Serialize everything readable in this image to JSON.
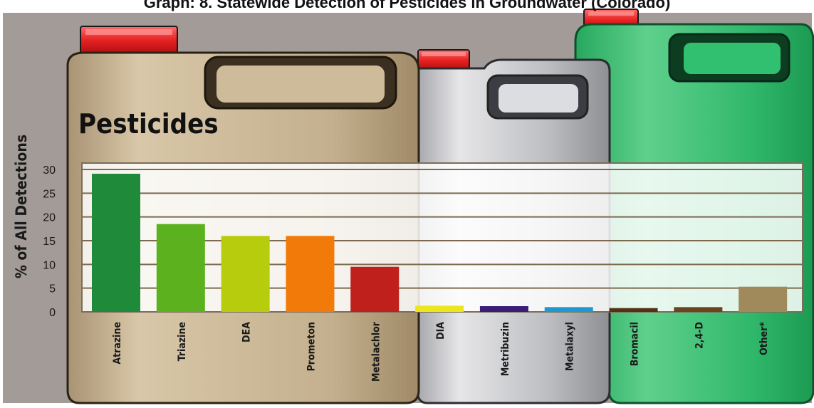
{
  "chart_data": {
    "type": "bar",
    "title": "Graph: 8. Statewide Detection of Pesticides in Groundwater (Colorado)",
    "container_label": "Pesticides",
    "ylabel": "% of All Detections",
    "xlabel": "",
    "ylim": [
      0,
      30
    ],
    "yticks": [
      0,
      5,
      10,
      15,
      20,
      25,
      30
    ],
    "grid": true,
    "categories": [
      "Atrazine",
      "Triazine",
      "DEA",
      "Prometon",
      "Metalachlor",
      "DIA",
      "Metribuzin",
      "Metalaxyl",
      "Bromacil",
      "2,4-D",
      "Other*"
    ],
    "values": [
      29.1,
      18.5,
      16,
      16,
      9.5,
      1.3,
      1.2,
      1,
      0.8,
      1,
      5.3
    ],
    "bar_colors": [
      "#1f8a3a",
      "#5cb21e",
      "#b7cc0c",
      "#f17a09",
      "#c0201c",
      "#eee61a",
      "#3a1d78",
      "#1d98d2",
      "#553015",
      "#6a4320",
      "#a0895a"
    ]
  }
}
